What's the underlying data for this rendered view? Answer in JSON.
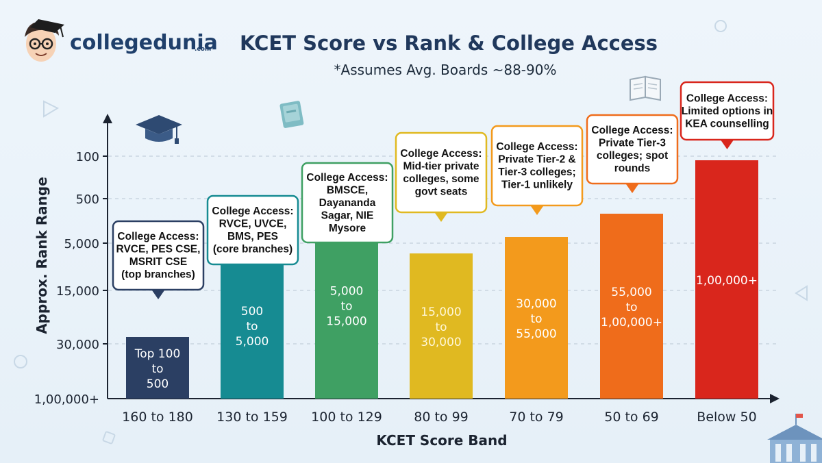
{
  "brand": {
    "name": "collegedunia",
    "suffix": ".com",
    "colors": {
      "primary": "#1f3f6b",
      "accent": "#f05a28"
    }
  },
  "chart_data": {
    "type": "bar",
    "title": "KCET Score vs Rank & College Access",
    "subtitle": "*Assumes Avg. Boards ~88-90%",
    "xlabel": "KCET Score Band",
    "ylabel": "Approx. Rank Range",
    "y_ticks": [
      "100",
      "500",
      "5,000",
      "15,000",
      "30,000",
      "1,00,000+"
    ],
    "y_tick_values": [
      100,
      500,
      5000,
      15000,
      30000,
      100000
    ],
    "y_axis_inverted_rank": true,
    "grid": true,
    "categories": [
      "160 to 180",
      "130 to 159",
      "100 to 129",
      "80 to 99",
      "70 to 79",
      "50 to 69",
      "Below 50"
    ],
    "rank_labels": [
      [
        "Top 100",
        "to",
        "500"
      ],
      [
        "500",
        "to",
        "5,000"
      ],
      [
        "5,000",
        "to",
        "15,000"
      ],
      [
        "15,000",
        "to",
        "30,000"
      ],
      [
        "30,000",
        "to",
        "55,000"
      ],
      [
        "55,000",
        "to",
        "1,00,000+"
      ],
      [
        "1,00,000+"
      ]
    ],
    "bar_levels": [
      30000,
      15000,
      5000,
      5000,
      500,
      500,
      100
    ],
    "bar_colors": [
      "#2b3f63",
      "#168b92",
      "#3fa063",
      "#e0b921",
      "#f39a1c",
      "#ef6c1b",
      "#d9261c"
    ],
    "callouts": [
      {
        "lines": [
          "College Access:",
          "RVCE, PES CSE,",
          "MSRIT CSE",
          "(top branches)"
        ],
        "border": "#2b3f63"
      },
      {
        "lines": [
          "College Access:",
          "RVCE, UVCE,",
          "BMS, PES",
          "(core branches)"
        ],
        "border": "#168b92"
      },
      {
        "lines": [
          "College Access:",
          "BMSCE,",
          "Dayananda",
          "Sagar, NIE",
          "Mysore"
        ],
        "border": "#3fa063"
      },
      {
        "lines": [
          "College Access:",
          "Mid-tier private",
          "colleges, some",
          "govt seats"
        ],
        "border": "#e0b921"
      },
      {
        "lines": [
          "College Access:",
          "Private Tier-2 &",
          "Tier-3 colleges;",
          "Tier-1 unlikely"
        ],
        "border": "#f39a1c"
      },
      {
        "lines": [
          "College Access:",
          "Private Tier-3",
          "colleges; spot",
          "rounds"
        ],
        "border": "#ef6c1b"
      },
      {
        "lines": [
          "College Access:",
          "Limited options in",
          "KEA counselling"
        ],
        "border": "#d9261c"
      }
    ]
  }
}
